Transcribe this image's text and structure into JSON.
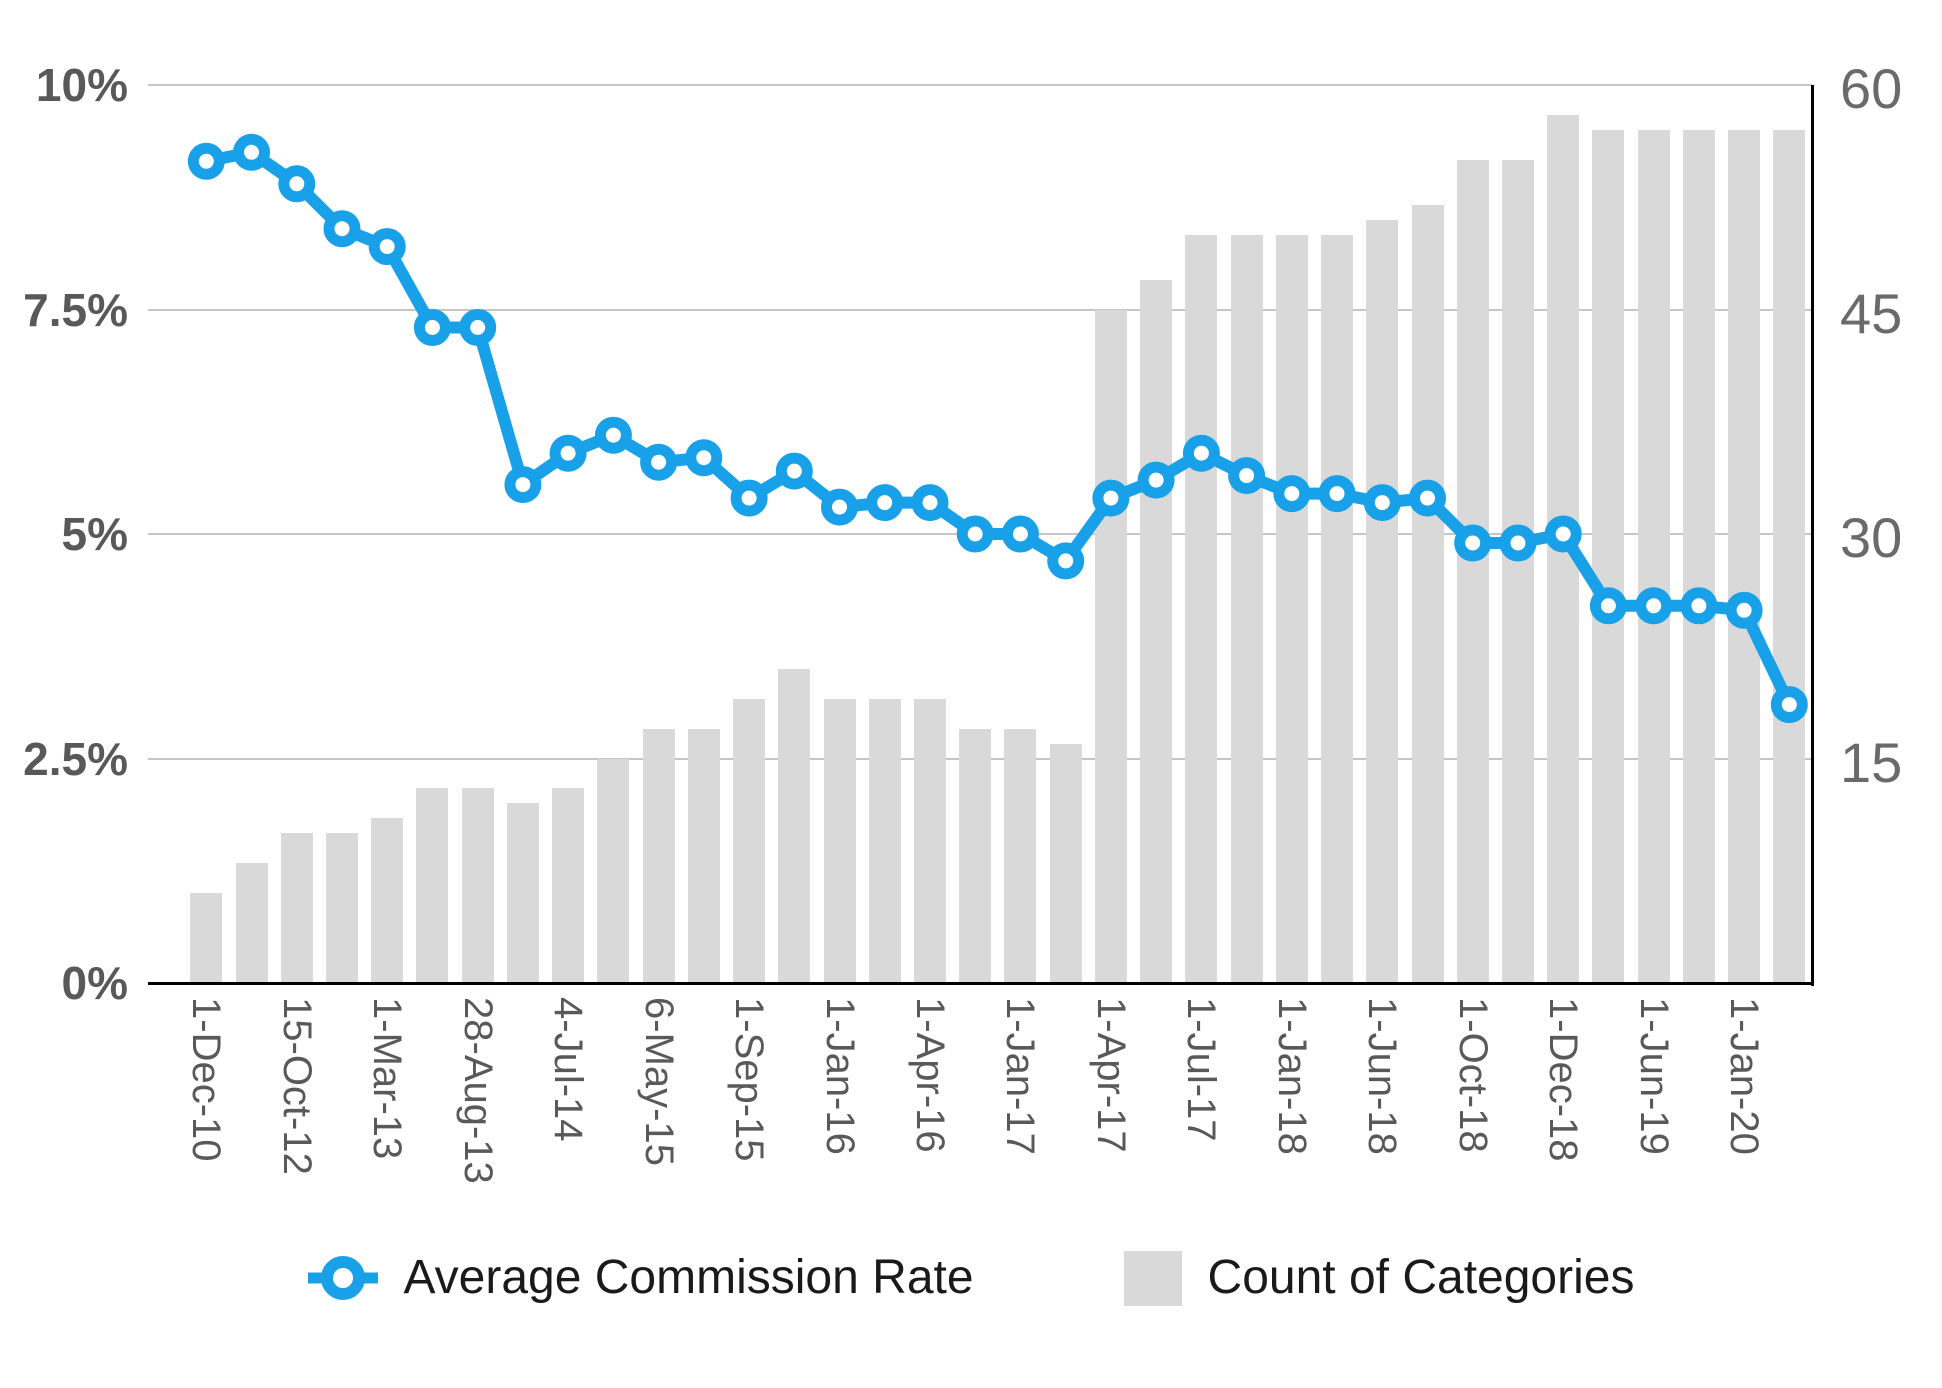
{
  "chart_data": {
    "type": "combo-bar-line",
    "title": "",
    "grid": true,
    "legend_position": "bottom",
    "x_tick_labels": [
      "1-Dec-10",
      "15-Oct-12",
      "1-Mar-13",
      "28-Aug-13",
      "4-Jul-14",
      "6-May-15",
      "1-Sep-15",
      "1-Jan-16",
      "1-Apr-16",
      "1-Jan-17",
      "1-Apr-17",
      "1-Jul-17",
      "1-Jan-18",
      "1-Jun-18",
      "1-Oct-18",
      "1-Dec-18",
      "1-Jun-19",
      "1-Jan-20"
    ],
    "x_label_every_n_bars": 2,
    "series": [
      {
        "name": "Average Commission Rate",
        "type": "line",
        "axis": "left",
        "color": "#18a1e8",
        "unit": "%",
        "values": [
          9.15,
          9.25,
          8.9,
          8.4,
          8.2,
          7.3,
          7.3,
          5.55,
          5.9,
          6.1,
          5.8,
          5.85,
          5.4,
          5.7,
          5.3,
          5.35,
          5.35,
          5.0,
          5.0,
          4.7,
          5.4,
          5.6,
          5.9,
          5.65,
          5.45,
          5.45,
          5.35,
          5.4,
          4.9,
          4.9,
          5.0,
          4.2,
          4.2,
          4.2,
          4.15,
          3.1
        ]
      },
      {
        "name": "Count of Categories",
        "type": "bar",
        "axis": "right",
        "color": "#d9d9d9",
        "values": [
          6,
          8,
          10,
          10,
          11,
          13,
          13,
          12,
          13,
          15,
          17,
          17,
          19,
          21,
          19,
          19,
          19,
          17,
          17,
          16,
          45,
          47,
          50,
          50,
          50,
          50,
          51,
          52,
          55,
          55,
          58,
          57,
          57,
          57,
          57,
          57
        ]
      }
    ],
    "axes": {
      "left": {
        "ticks": [
          "10%",
          "7.5%",
          "5%",
          "2.5%",
          "0%"
        ],
        "min": 0,
        "max": 10
      },
      "right": {
        "ticks": [
          "60",
          "45",
          "30",
          "15"
        ],
        "min": 0,
        "max": 60
      }
    }
  },
  "legend": {
    "line_label": "Average Commission Rate",
    "bar_label": "Count of Categories"
  },
  "colors": {
    "line_blue": "#18a1e8",
    "bar_gray": "#d9d9d9",
    "gridline": "#c6c6c6",
    "axis_text": "#595959",
    "legend_text": "#1a1a1a",
    "axis_line": "#000000"
  }
}
